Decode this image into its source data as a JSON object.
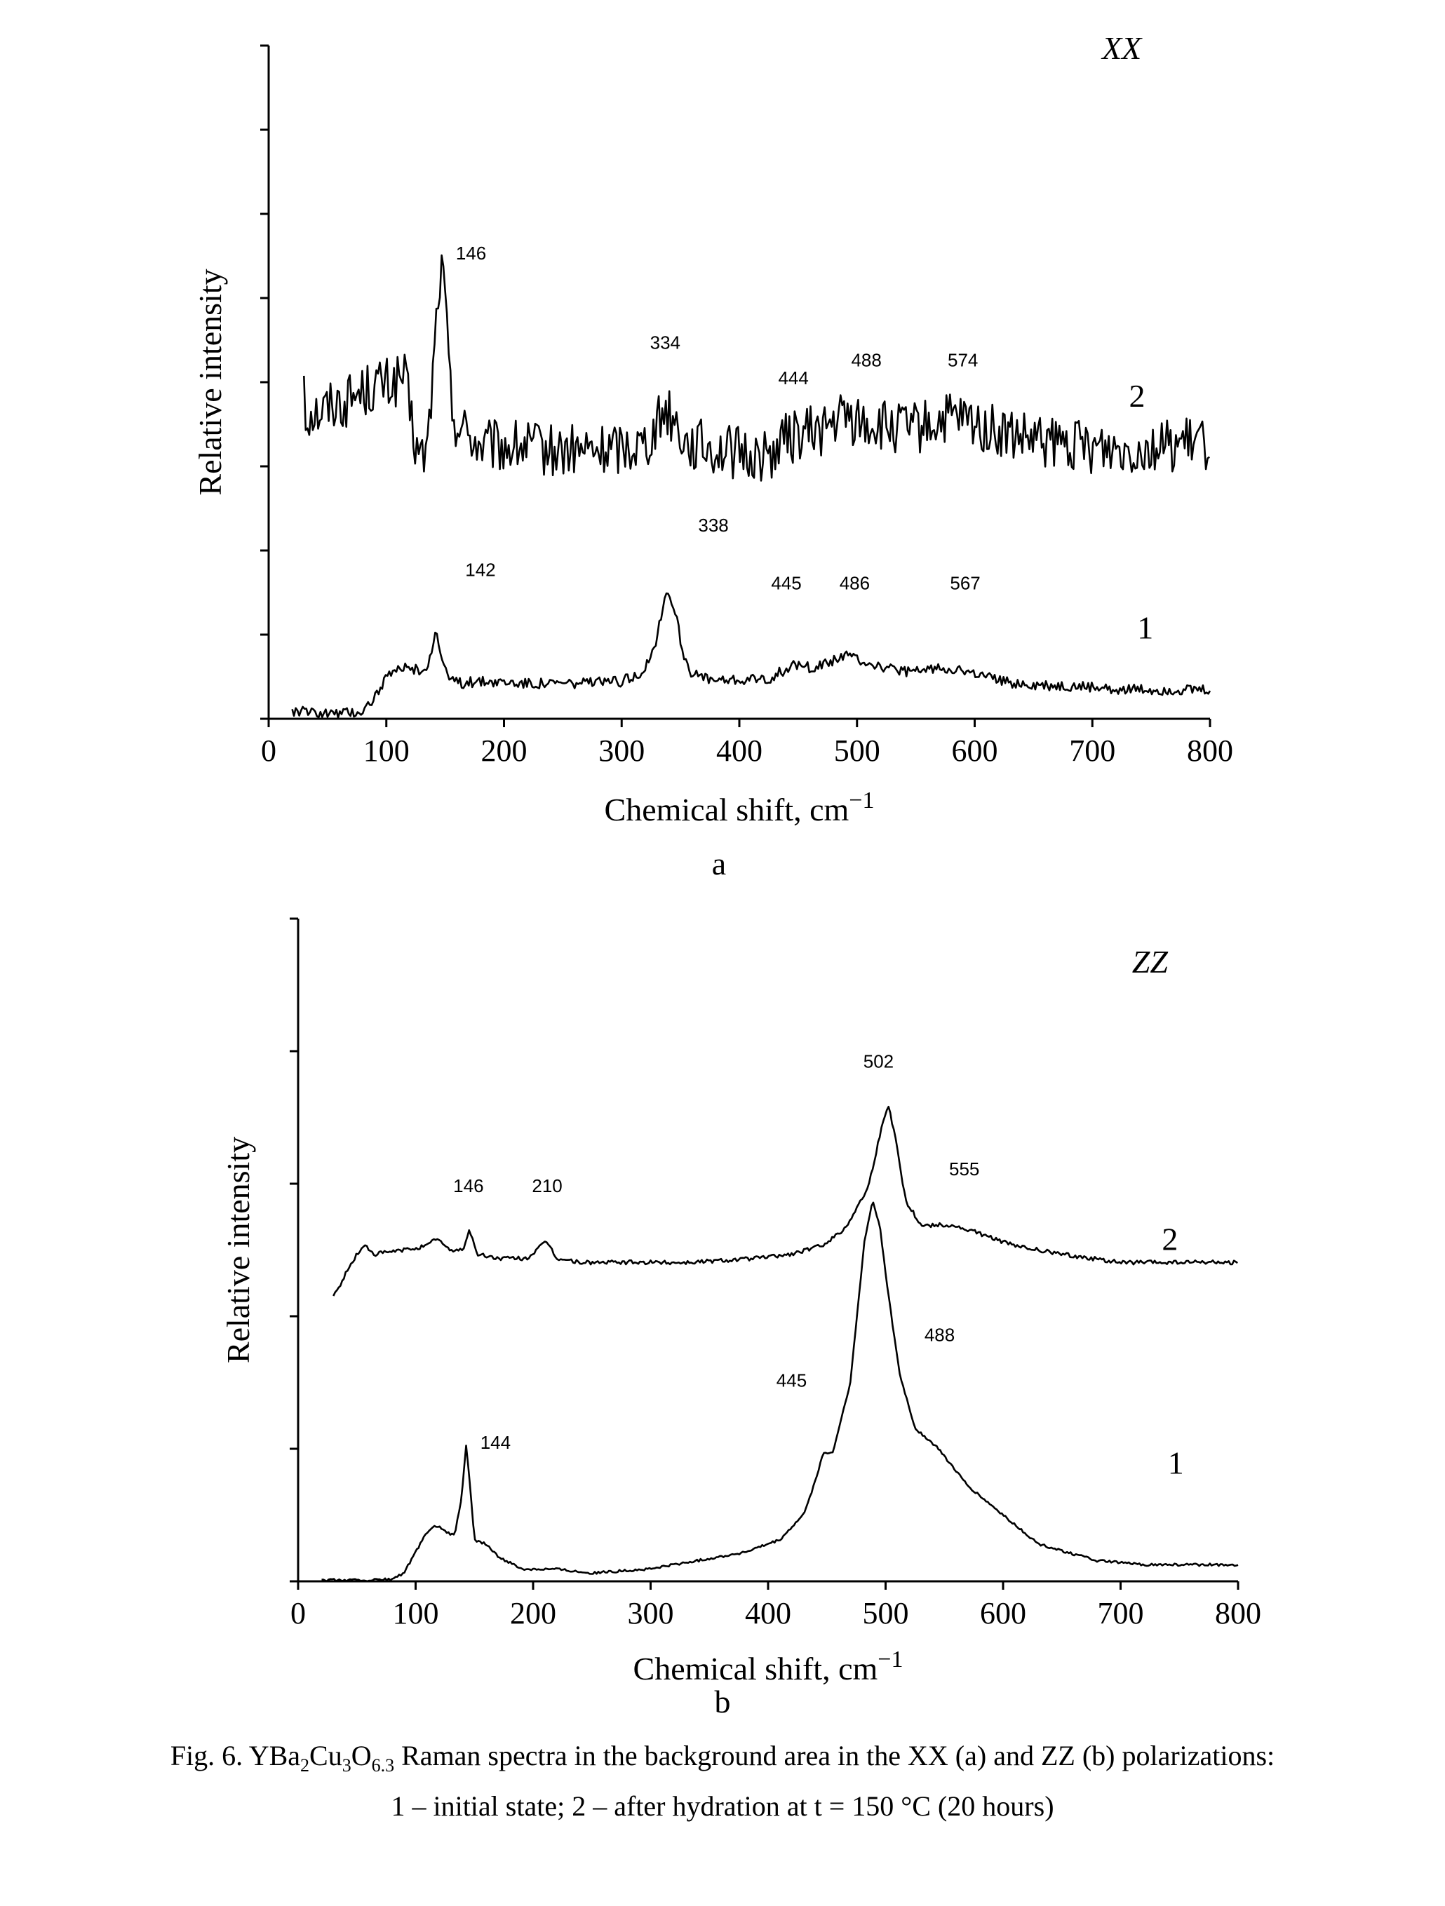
{
  "chart_data": [
    {
      "type": "line",
      "panel": "a",
      "title": "",
      "xlabel": "Chemical shift, cm",
      "xlabel_sup": "−1",
      "ylabel": "Relative intensity",
      "xlim": [
        0,
        800
      ],
      "xticks": [
        "0",
        "100",
        "200",
        "300",
        "400",
        "500",
        "600",
        "700",
        "800"
      ],
      "ytick_count": 8,
      "grid": false,
      "polarization": "XX",
      "series": [
        {
          "name": "2",
          "noise": 6,
          "points": [
            [
              30,
              77
            ],
            [
              31,
              67
            ],
            [
              36,
              68
            ],
            [
              45,
              68
            ],
            [
              55,
              70
            ],
            [
              65,
              70
            ],
            [
              75,
              72
            ],
            [
              85,
              73
            ],
            [
              95,
              74
            ],
            [
              105,
              74
            ],
            [
              115,
              76
            ],
            [
              125,
              60
            ],
            [
              130,
              57
            ],
            [
              135,
              60
            ],
            [
              140,
              78
            ],
            [
              145,
              98
            ],
            [
              148,
              99
            ],
            [
              150,
              92
            ],
            [
              155,
              70
            ],
            [
              160,
              65
            ],
            [
              170,
              63
            ],
            [
              180,
              60
            ],
            [
              200,
              60
            ],
            [
              220,
              60
            ],
            [
              240,
              59
            ],
            [
              260,
              59
            ],
            [
              280,
              59
            ],
            [
              300,
              60
            ],
            [
              320,
              61
            ],
            [
              330,
              65
            ],
            [
              337,
              69
            ],
            [
              345,
              66
            ],
            [
              355,
              61
            ],
            [
              370,
              60
            ],
            [
              390,
              59
            ],
            [
              410,
              58
            ],
            [
              425,
              58
            ],
            [
              440,
              62
            ],
            [
              455,
              63
            ],
            [
              470,
              64
            ],
            [
              480,
              65
            ],
            [
              488,
              67
            ],
            [
              495,
              66
            ],
            [
              510,
              65
            ],
            [
              530,
              64
            ],
            [
              550,
              64
            ],
            [
              565,
              65
            ],
            [
              574,
              66
            ],
            [
              585,
              66
            ],
            [
              600,
              65
            ],
            [
              620,
              63
            ],
            [
              650,
              61
            ],
            [
              700,
              60
            ],
            [
              750,
              60
            ],
            [
              800,
              61
            ]
          ]
        },
        {
          "name": "1",
          "noise": 1.2,
          "points": [
            [
              20,
              0.7
            ],
            [
              40,
              0.5
            ],
            [
              60,
              0.3
            ],
            [
              80,
              0.8
            ],
            [
              90,
              4
            ],
            [
              100,
              8
            ],
            [
              110,
              10
            ],
            [
              120,
              10.5
            ],
            [
              130,
              9.5
            ],
            [
              137,
              12
            ],
            [
              142,
              19
            ],
            [
              146,
              14
            ],
            [
              152,
              8
            ],
            [
              165,
              7
            ],
            [
              185,
              7.5
            ],
            [
              220,
              7
            ],
            [
              260,
              7
            ],
            [
              300,
              7.3
            ],
            [
              320,
              10
            ],
            [
              330,
              17
            ],
            [
              338,
              28
            ],
            [
              345,
              24
            ],
            [
              352,
              14
            ],
            [
              360,
              9
            ],
            [
              380,
              7.5
            ],
            [
              400,
              7.5
            ],
            [
              425,
              8
            ],
            [
              445,
              11
            ],
            [
              460,
              10.5
            ],
            [
              475,
              11.5
            ],
            [
              486,
              13
            ],
            [
              495,
              13
            ],
            [
              510,
              11.5
            ],
            [
              530,
              10
            ],
            [
              550,
              9.5
            ],
            [
              567,
              10.5
            ],
            [
              580,
              10.5
            ],
            [
              600,
              9
            ],
            [
              620,
              7.5
            ],
            [
              650,
              6.5
            ],
            [
              700,
              6
            ],
            [
              750,
              5.5
            ],
            [
              800,
              5.5
            ]
          ]
        }
      ],
      "peak_labels": [
        {
          "text": "146",
          "x": 172,
          "y": 102
        },
        {
          "text": "334",
          "x": 337,
          "y": 82
        },
        {
          "text": "444",
          "x": 446,
          "y": 74
        },
        {
          "text": "488",
          "x": 508,
          "y": 78
        },
        {
          "text": "574",
          "x": 590,
          "y": 78
        },
        {
          "text": "142",
          "x": 180,
          "y": 31
        },
        {
          "text": "338",
          "x": 378,
          "y": 41
        },
        {
          "text": "445",
          "x": 440,
          "y": 28
        },
        {
          "text": "486",
          "x": 498,
          "y": 28
        },
        {
          "text": "567",
          "x": 592,
          "y": 28
        }
      ],
      "curve_labels": [
        {
          "text": "2",
          "x": 738,
          "y": 69
        },
        {
          "text": "1",
          "x": 745,
          "y": 17
        },
        {
          "text": "XX",
          "x": 725,
          "y": 147
        }
      ],
      "ylim": [
        -1,
        150
      ]
    },
    {
      "type": "line",
      "panel": "b",
      "title": "",
      "xlabel": "Chemical shift, cm",
      "xlabel_sup": "−1",
      "ylabel": "Relative intensity",
      "xlim": [
        0,
        800
      ],
      "xticks": [
        "0",
        "100",
        "200",
        "300",
        "400",
        "500",
        "600",
        "700",
        "800"
      ],
      "ytick_count": 5,
      "grid": false,
      "polarization": "ZZ",
      "series": [
        {
          "name": "2",
          "noise": 0.5,
          "points": [
            [
              30,
              69
            ],
            [
              33,
              70
            ],
            [
              40,
              74
            ],
            [
              50,
              79
            ],
            [
              57,
              81
            ],
            [
              65,
              79
            ],
            [
              90,
              80
            ],
            [
              110,
              81
            ],
            [
              118,
              83
            ],
            [
              128,
              80
            ],
            [
              140,
              80
            ],
            [
              146,
              85
            ],
            [
              152,
              79
            ],
            [
              170,
              78
            ],
            [
              195,
              78
            ],
            [
              207,
              81
            ],
            [
              212,
              82
            ],
            [
              220,
              78
            ],
            [
              240,
              77
            ],
            [
              270,
              77
            ],
            [
              300,
              77
            ],
            [
              330,
              77
            ],
            [
              360,
              77.5
            ],
            [
              390,
              78
            ],
            [
              420,
              79
            ],
            [
              445,
              81
            ],
            [
              465,
              85
            ],
            [
              485,
              95
            ],
            [
              497,
              110
            ],
            [
              502,
              115
            ],
            [
              508,
              108
            ],
            [
              517,
              92
            ],
            [
              530,
              86
            ],
            [
              555,
              86
            ],
            [
              580,
              84
            ],
            [
              610,
              81
            ],
            [
              650,
              79
            ],
            [
              700,
              77
            ],
            [
              750,
              77
            ],
            [
              800,
              77
            ]
          ]
        },
        {
          "name": "1",
          "noise": 0.3,
          "points": [
            [
              20,
              0.3
            ],
            [
              60,
              0.3
            ],
            [
              80,
              0.5
            ],
            [
              90,
              2
            ],
            [
              100,
              7
            ],
            [
              110,
              12
            ],
            [
              118,
              13.5
            ],
            [
              125,
              12
            ],
            [
              133,
              11
            ],
            [
              139,
              20
            ],
            [
              143,
              33
            ],
            [
              146,
              24
            ],
            [
              150,
              10
            ],
            [
              160,
              9
            ],
            [
              170,
              6
            ],
            [
              190,
              3
            ],
            [
              220,
              3
            ],
            [
              250,
              2
            ],
            [
              300,
              3
            ],
            [
              340,
              5
            ],
            [
              380,
              7
            ],
            [
              410,
              10
            ],
            [
              430,
              16
            ],
            [
              440,
              24
            ],
            [
              447,
              31
            ],
            [
              455,
              31
            ],
            [
              470,
              48
            ],
            [
              482,
              82
            ],
            [
              489,
              92
            ],
            [
              495,
              86
            ],
            [
              502,
              70
            ],
            [
              512,
              50
            ],
            [
              525,
              37
            ],
            [
              545,
              32
            ],
            [
              570,
              23
            ],
            [
              600,
              16
            ],
            [
              630,
              9
            ],
            [
              680,
              5
            ],
            [
              720,
              4
            ],
            [
              800,
              4
            ]
          ]
        }
      ],
      "peak_labels": [
        {
          "text": "146",
          "x": 145,
          "y": 94
        },
        {
          "text": "210",
          "x": 212,
          "y": 94
        },
        {
          "text": "502",
          "x": 494,
          "y": 124
        },
        {
          "text": "555",
          "x": 567,
          "y": 98
        },
        {
          "text": "144",
          "x": 168,
          "y": 32
        },
        {
          "text": "445",
          "x": 420,
          "y": 47
        },
        {
          "text": "488",
          "x": 546,
          "y": 58
        }
      ],
      "curve_labels": [
        {
          "text": "2",
          "x": 742,
          "y": 80
        },
        {
          "text": "1",
          "x": 747,
          "y": 26
        },
        {
          "text": "ZZ",
          "x": 725,
          "y": 147
        }
      ],
      "ylim": [
        0,
        160
      ]
    }
  ],
  "panel_letters": [
    "a",
    "b"
  ],
  "caption": {
    "line1_pre": "Fig. 6. YBa",
    "sub1": "2",
    "line1_mid1": "Cu",
    "sub2": "3",
    "line1_mid2": "O",
    "sub3": "6.3",
    "line1_post": " Raman spectra in the background area in the XX (a) and ZZ (b) polarizations:",
    "line2": "1 – initial state; 2 – after hydration at t = 150 °C (20 hours)"
  }
}
